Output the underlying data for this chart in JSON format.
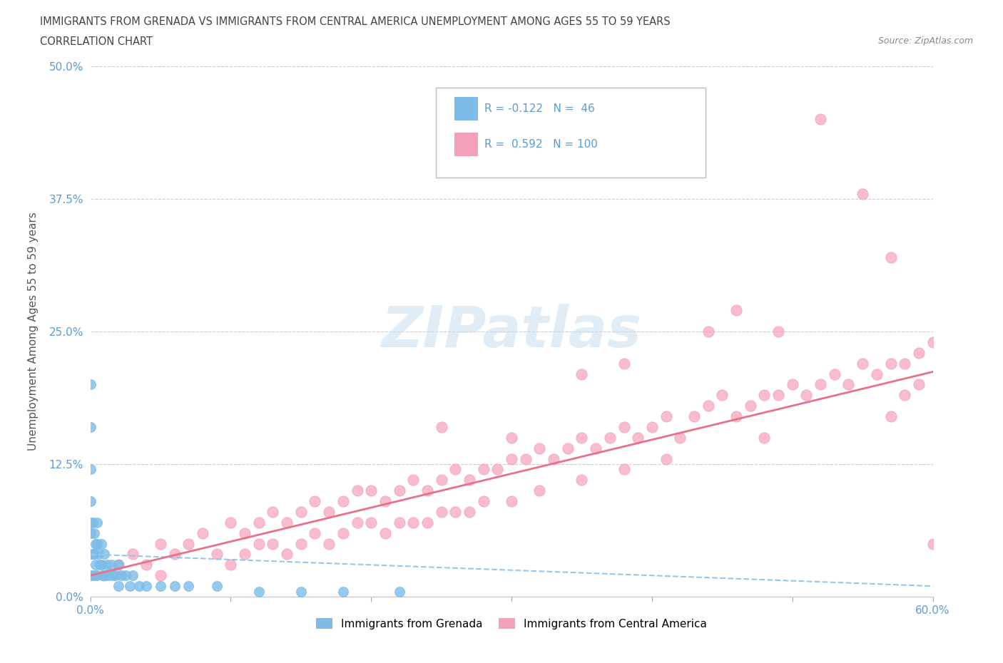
{
  "title_line1": "IMMIGRANTS FROM GRENADA VS IMMIGRANTS FROM CENTRAL AMERICA UNEMPLOYMENT AMONG AGES 55 TO 59 YEARS",
  "title_line2": "CORRELATION CHART",
  "source_text": "Source: ZipAtlas.com",
  "ylabel": "Unemployment Among Ages 55 to 59 years",
  "xlim": [
    0.0,
    0.6
  ],
  "ylim": [
    0.0,
    0.5
  ],
  "yticks": [
    0.0,
    0.125,
    0.25,
    0.375,
    0.5
  ],
  "ytick_labels": [
    "0.0%",
    "12.5%",
    "25.0%",
    "37.5%",
    "50.0%"
  ],
  "xticks": [
    0.0,
    0.1,
    0.2,
    0.3,
    0.4,
    0.5,
    0.6
  ],
  "grenada_color": "#7dbce8",
  "central_america_color": "#f5a0b8",
  "grenada_line_color": "#90c8f0",
  "central_america_line_color": "#e8708a",
  "grenada_R": -0.122,
  "grenada_N": 46,
  "central_america_R": 0.592,
  "central_america_N": 100,
  "watermark": "ZIPatlas",
  "legend_label_grenada": "Immigrants from Grenada",
  "legend_label_central_america": "Immigrants from Central America",
  "grenada_x": [
    0.0,
    0.0,
    0.0,
    0.0,
    0.0,
    0.0,
    0.0,
    0.0,
    0.002,
    0.002,
    0.003,
    0.003,
    0.003,
    0.004,
    0.004,
    0.005,
    0.005,
    0.005,
    0.006,
    0.007,
    0.008,
    0.008,
    0.009,
    0.01,
    0.01,
    0.012,
    0.013,
    0.015,
    0.016,
    0.018,
    0.02,
    0.02,
    0.022,
    0.025,
    0.028,
    0.03,
    0.035,
    0.04,
    0.05,
    0.06,
    0.07,
    0.09,
    0.12,
    0.15,
    0.18,
    0.22
  ],
  "grenada_y": [
    0.2,
    0.16,
    0.12,
    0.09,
    0.07,
    0.06,
    0.04,
    0.02,
    0.07,
    0.04,
    0.06,
    0.04,
    0.02,
    0.05,
    0.03,
    0.07,
    0.05,
    0.02,
    0.04,
    0.03,
    0.05,
    0.03,
    0.02,
    0.04,
    0.02,
    0.03,
    0.02,
    0.03,
    0.02,
    0.02,
    0.03,
    0.01,
    0.02,
    0.02,
    0.01,
    0.02,
    0.01,
    0.01,
    0.01,
    0.01,
    0.01,
    0.01,
    0.005,
    0.005,
    0.005,
    0.005
  ],
  "central_america_x": [
    0.01,
    0.02,
    0.03,
    0.04,
    0.05,
    0.05,
    0.06,
    0.07,
    0.08,
    0.09,
    0.1,
    0.1,
    0.11,
    0.11,
    0.12,
    0.12,
    0.13,
    0.13,
    0.14,
    0.14,
    0.15,
    0.15,
    0.16,
    0.16,
    0.17,
    0.17,
    0.18,
    0.18,
    0.19,
    0.19,
    0.2,
    0.2,
    0.21,
    0.21,
    0.22,
    0.22,
    0.23,
    0.23,
    0.24,
    0.24,
    0.25,
    0.25,
    0.26,
    0.26,
    0.27,
    0.27,
    0.28,
    0.28,
    0.29,
    0.3,
    0.3,
    0.31,
    0.32,
    0.32,
    0.33,
    0.34,
    0.35,
    0.35,
    0.36,
    0.37,
    0.38,
    0.38,
    0.39,
    0.4,
    0.41,
    0.41,
    0.42,
    0.43,
    0.44,
    0.45,
    0.46,
    0.47,
    0.48,
    0.48,
    0.49,
    0.5,
    0.51,
    0.52,
    0.53,
    0.54,
    0.55,
    0.56,
    0.57,
    0.57,
    0.58,
    0.58,
    0.59,
    0.59,
    0.6,
    0.6,
    0.57,
    0.55,
    0.52,
    0.49,
    0.46,
    0.44,
    0.38,
    0.35,
    0.3,
    0.25
  ],
  "central_america_y": [
    0.02,
    0.03,
    0.04,
    0.03,
    0.05,
    0.02,
    0.04,
    0.05,
    0.06,
    0.04,
    0.07,
    0.03,
    0.06,
    0.04,
    0.07,
    0.05,
    0.08,
    0.05,
    0.07,
    0.04,
    0.08,
    0.05,
    0.09,
    0.06,
    0.08,
    0.05,
    0.09,
    0.06,
    0.1,
    0.07,
    0.1,
    0.07,
    0.09,
    0.06,
    0.1,
    0.07,
    0.11,
    0.07,
    0.1,
    0.07,
    0.11,
    0.08,
    0.12,
    0.08,
    0.11,
    0.08,
    0.12,
    0.09,
    0.12,
    0.13,
    0.09,
    0.13,
    0.14,
    0.1,
    0.13,
    0.14,
    0.15,
    0.11,
    0.14,
    0.15,
    0.16,
    0.12,
    0.15,
    0.16,
    0.17,
    0.13,
    0.15,
    0.17,
    0.18,
    0.19,
    0.17,
    0.18,
    0.19,
    0.15,
    0.19,
    0.2,
    0.19,
    0.2,
    0.21,
    0.2,
    0.22,
    0.21,
    0.22,
    0.17,
    0.22,
    0.19,
    0.23,
    0.2,
    0.24,
    0.05,
    0.32,
    0.38,
    0.45,
    0.25,
    0.27,
    0.25,
    0.22,
    0.21,
    0.15,
    0.16
  ]
}
